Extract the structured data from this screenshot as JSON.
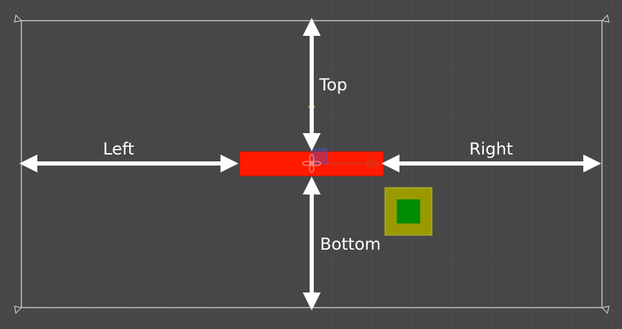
{
  "canvas": {
    "background_color": "#474747",
    "grid_color": "#555555",
    "border_color": "#e6e6e6"
  },
  "labels": {
    "top": "Top",
    "left": "Left",
    "right": "Right",
    "bottom": "Bottom"
  },
  "icons": {
    "corner_handles": "anchor-triangle-icon",
    "pivot": "pivot-flower-icon",
    "move_gizmo": "move-gizmo-icon"
  },
  "colors": {
    "arrow": "#ffffff",
    "element_fill": "#ff1a00",
    "child_outer": "#9a9a00",
    "child_inner": "#008c00",
    "gizmo_x": "#c84020",
    "gizmo_y": "#80d040",
    "gizmo_center": "#5050c8"
  }
}
